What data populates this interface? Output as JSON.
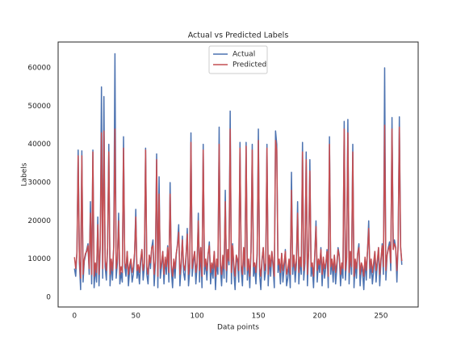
{
  "chart_data": {
    "type": "line",
    "title": "Actual vs Predicted Labels",
    "x_label": "Data points",
    "y_label": "Labels",
    "xlim": [
      -13.35,
      280.35
    ],
    "ylim": [
      -2535,
      66760
    ],
    "xticks": [
      0,
      50,
      100,
      150,
      200,
      250
    ],
    "yticks": [
      0,
      10000,
      20000,
      30000,
      40000,
      50000,
      60000
    ],
    "grid": false,
    "legend": "upper center",
    "series": [
      {
        "name": "Actual",
        "color": "#4c72b0",
        "values": [
          7500,
          5500,
          12000,
          38500,
          9000,
          2000,
          38300,
          4000,
          9500,
          11000,
          12500,
          14000,
          6000,
          25000,
          3500,
          38500,
          2500,
          8000,
          4000,
          21000,
          3000,
          13000,
          55000,
          5000,
          52500,
          8000,
          4500,
          13000,
          40000,
          3000,
          9000,
          4500,
          13500,
          63700,
          5000,
          9000,
          22000,
          3500,
          6500,
          4000,
          42000,
          8000,
          5500,
          12000,
          3000,
          7000,
          9500,
          4000,
          6000,
          11000,
          23000,
          5000,
          7500,
          3500,
          9000,
          12500,
          4500,
          8000,
          39000,
          6000,
          3500,
          11000,
          7500,
          13000,
          15000,
          3000,
          9000,
          37500,
          2500,
          31500,
          5000,
          8000,
          12000,
          3500,
          10000,
          6000,
          13500,
          4000,
          30000,
          7000,
          2500,
          9500,
          5000,
          11000,
          14000,
          19000,
          3000,
          8000,
          16000,
          6500,
          4500,
          10500,
          18000,
          3000,
          7000,
          43000,
          5500,
          9000,
          12000,
          3500,
          8000,
          22000,
          4000,
          13000,
          2500,
          40000,
          6000,
          9500,
          4500,
          11000,
          14500,
          3500,
          8000,
          5000,
          12000,
          2000,
          9000,
          6000,
          44500,
          7500,
          3000,
          10500,
          5000,
          28000,
          4000,
          12500,
          8500,
          48700,
          3500,
          14000,
          6500,
          2000,
          11000,
          9000,
          4000,
          40500,
          7000,
          3000,
          13000,
          6000,
          40500,
          4500,
          9500,
          2500,
          12000,
          40000,
          5500,
          8000,
          3500,
          11000,
          44000,
          6000,
          2000,
          9500,
          13000,
          4500,
          7000,
          40000,
          3000,
          10500,
          5500,
          12000,
          8000,
          2500,
          43500,
          40000,
          6500,
          9000,
          3500,
          11500,
          4000,
          7500,
          12500,
          3000,
          5000,
          9000,
          2500,
          32700,
          6000,
          11000,
          4000,
          8500,
          25000,
          3500,
          10000,
          6000,
          40500,
          4500,
          9000,
          38000,
          3000,
          12000,
          36000,
          5500,
          8000,
          2500,
          11000,
          20000,
          4000,
          9500,
          6500,
          13000,
          3000,
          10000,
          5000,
          8000,
          12500,
          2500,
          42000,
          6000,
          9500,
          4000,
          11000,
          3500,
          7500,
          13000,
          11000,
          3000,
          8000,
          5000,
          46000,
          4500,
          10000,
          46500,
          3500,
          12000,
          6000,
          40000,
          2500,
          9000,
          5000,
          11500,
          14000,
          3000,
          8000,
          6500,
          2000,
          10000,
          4500,
          12000,
          20000,
          5000,
          9000,
          3500,
          7000,
          12000,
          4000,
          8500,
          13000,
          3000,
          9500,
          14000,
          6000,
          60000,
          4500,
          11000,
          13000,
          14500,
          7000,
          47000,
          12500,
          15000,
          13000,
          4000,
          14000,
          47200,
          13500,
          8500
        ]
      },
      {
        "name": "Predicted",
        "color": "#c44e52",
        "values": [
          10500,
          7500,
          11500,
          37000,
          9500,
          5000,
          37000,
          6000,
          10000,
          11500,
          12000,
          13500,
          7500,
          22000,
          6000,
          38000,
          5500,
          9000,
          6500,
          19000,
          6000,
          13500,
          43000,
          7500,
          43500,
          9500,
          7000,
          13000,
          38000,
          6000,
          10000,
          7000,
          13000,
          44000,
          7500,
          10000,
          20000,
          6000,
          8000,
          6500,
          39000,
          9000,
          7500,
          12000,
          6000,
          8500,
          10000,
          6500,
          8000,
          11500,
          21000,
          7000,
          8500,
          6500,
          10000,
          12500,
          7000,
          9000,
          38500,
          8000,
          6000,
          11000,
          9000,
          13000,
          13500,
          6000,
          10000,
          36000,
          5500,
          27000,
          7500,
          9000,
          12000,
          6000,
          10500,
          8000,
          13000,
          6500,
          27000,
          8500,
          5500,
          10000,
          7500,
          11500,
          13500,
          17000,
          6000,
          9000,
          15000,
          8500,
          7000,
          11000,
          16500,
          6000,
          9000,
          40500,
          7500,
          10000,
          12000,
          6500,
          9000,
          20000,
          7000,
          13000,
          5500,
          38500,
          8000,
          10000,
          7000,
          11500,
          13500,
          6500,
          9000,
          7500,
          12000,
          5500,
          10000,
          8000,
          40000,
          9000,
          6000,
          11000,
          7500,
          25000,
          7000,
          12500,
          9500,
          44000,
          6500,
          13500,
          8500,
          5500,
          11000,
          10000,
          7000,
          39000,
          8500,
          6000,
          13000,
          8000,
          39500,
          7000,
          10000,
          5500,
          12000,
          38500,
          8000,
          9000,
          6500,
          11500,
          41000,
          8000,
          5500,
          10000,
          13000,
          7000,
          9000,
          39000,
          6000,
          11000,
          8000,
          12000,
          9000,
          5500,
          41000,
          38500,
          8500,
          10000,
          6500,
          11500,
          7000,
          9000,
          12000,
          6000,
          7500,
          10000,
          6000,
          28000,
          8000,
          11000,
          7000,
          9500,
          22000,
          6500,
          10500,
          8000,
          38000,
          7000,
          10000,
          36000,
          6000,
          12000,
          33000,
          8000,
          9000,
          5500,
          11000,
          18500,
          7000,
          10000,
          8500,
          12500,
          6000,
          10500,
          7500,
          9000,
          12000,
          5500,
          40000,
          8000,
          10000,
          7000,
          11000,
          6500,
          9000,
          12500,
          10500,
          6000,
          9000,
          7500,
          44000,
          7000,
          10500,
          43000,
          6500,
          12000,
          8000,
          38000,
          5500,
          10000,
          7500,
          11500,
          13000,
          6000,
          9000,
          8000,
          5500,
          10500,
          7000,
          12000,
          18000,
          7500,
          10000,
          6500,
          9000,
          12000,
          7000,
          9500,
          13000,
          6000,
          10000,
          13500,
          8000,
          45000,
          7000,
          11000,
          12500,
          13500,
          9000,
          44000,
          12500,
          14000,
          13000,
          7000,
          13500,
          44500,
          13000,
          9500
        ]
      }
    ]
  }
}
